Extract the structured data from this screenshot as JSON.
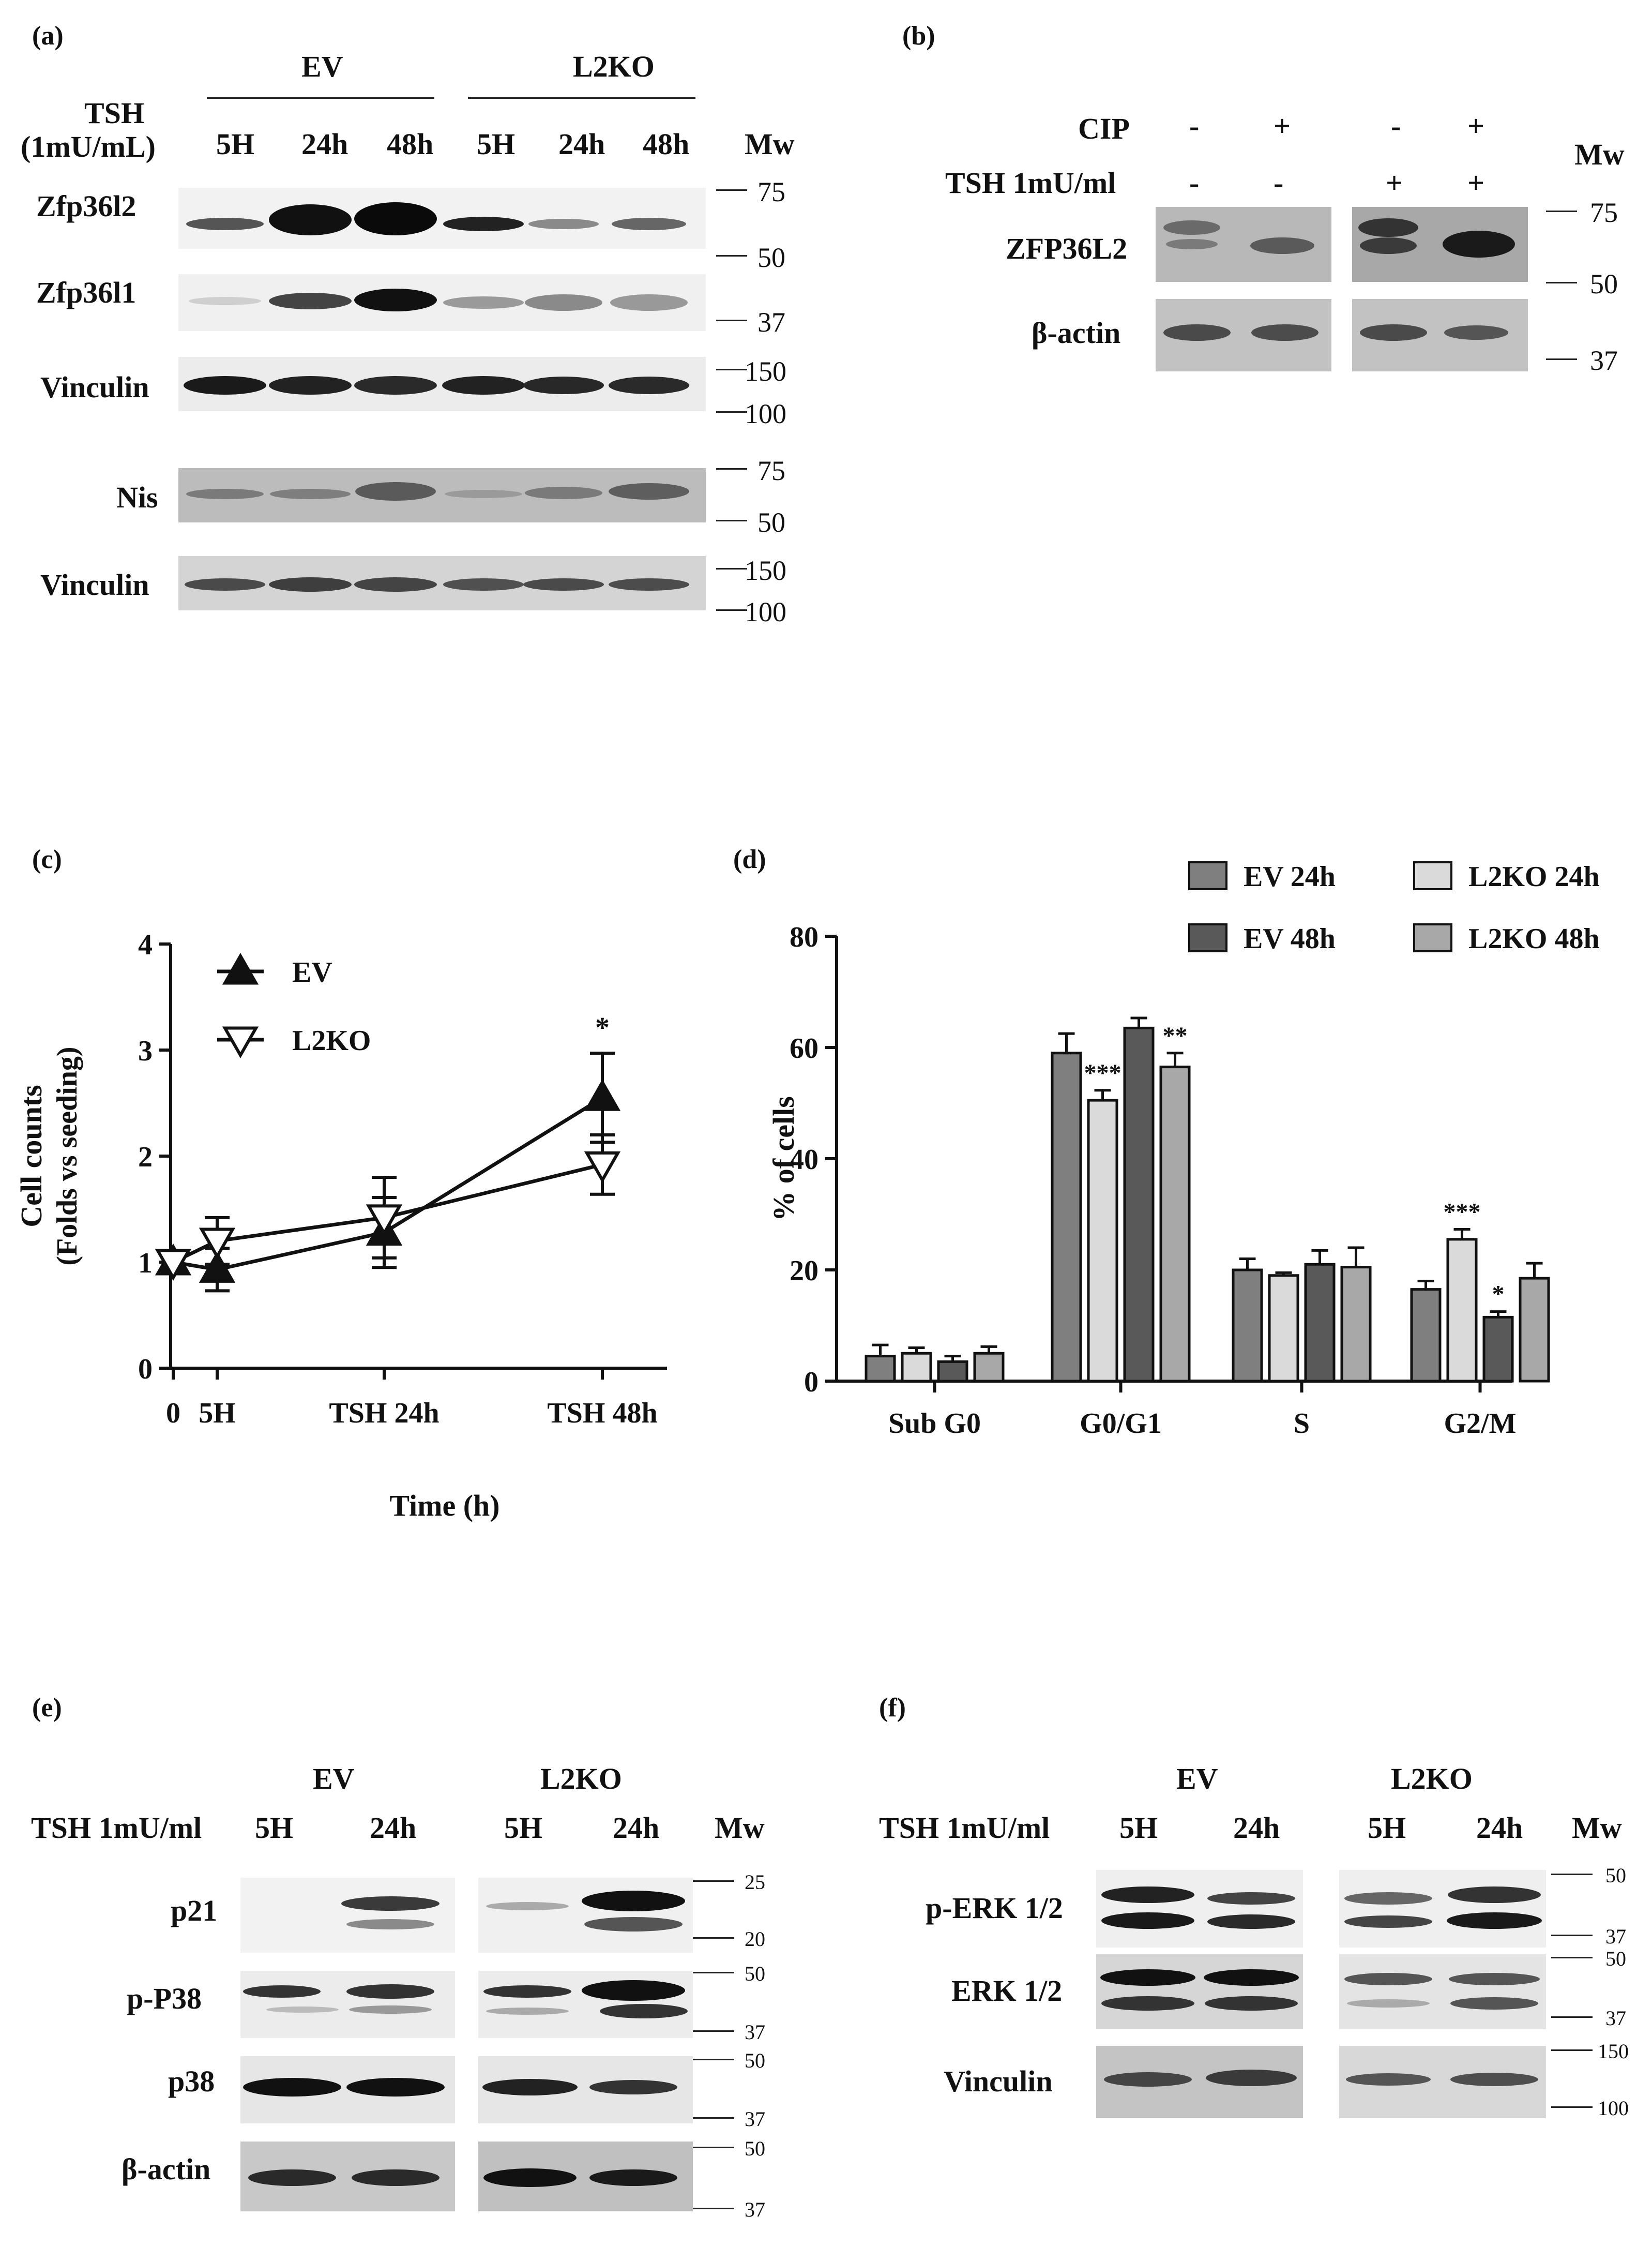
{
  "panels": {
    "a": "(a)",
    "b": "(b)",
    "c": "(c)",
    "d": "(d)",
    "e": "(e)",
    "f": "(f)"
  },
  "panel_a": {
    "group_ev": "EV",
    "group_l2ko": "L2KO",
    "treatment_line1": "TSH",
    "treatment_line2": "(1mU/mL)",
    "lanes": [
      "5H",
      "24h",
      "48h",
      "5H",
      "24h",
      "48h"
    ],
    "mw_title": "Mw",
    "rows": [
      "Zfp36l2",
      "Zfp36l1",
      "Vinculin",
      "Nis",
      "Vinculin"
    ],
    "markers": [
      "75",
      "50",
      "37",
      "150",
      "100",
      "75",
      "50",
      "150",
      "100"
    ]
  },
  "panel_b": {
    "cip_label": "CIP",
    "tsh_label": "TSH 1mU/ml",
    "cip_signs": [
      "-",
      "+",
      "-",
      "+"
    ],
    "tsh_signs": [
      "-",
      "-",
      "+",
      "+"
    ],
    "mw_title": "Mw",
    "rows": [
      "ZFP36L2",
      "β-actin"
    ],
    "markers": [
      "75",
      "50",
      "37"
    ]
  },
  "panel_e": {
    "group_ev": "EV",
    "group_l2ko": "L2KO",
    "treatment": "TSH 1mU/ml",
    "lanes": [
      "5H",
      "24h",
      "5H",
      "24h"
    ],
    "mw_title": "Mw",
    "rows": [
      "p21",
      "p-P38",
      "p38",
      "β-actin"
    ],
    "markers": [
      "25",
      "20",
      "50",
      "37",
      "50",
      "37",
      "50",
      "37"
    ]
  },
  "panel_f": {
    "group_ev": "EV",
    "group_l2ko": "L2KO",
    "treatment": "TSH 1mU/ml",
    "lanes": [
      "5H",
      "24h",
      "5H",
      "24h"
    ],
    "mw_title": "Mw",
    "rows": [
      "p-ERK 1/2",
      "ERK 1/2",
      "Vinculin"
    ],
    "markers": [
      "50",
      "37",
      "50",
      "37",
      "150",
      "100"
    ]
  },
  "chart_data": [
    {
      "type": "line",
      "panel": "c",
      "xlabel": "Time (h)",
      "ylabel": "Cell counts",
      "ylabel2": "(Folds vs seeding)",
      "x": [
        0,
        5,
        24,
        48
      ],
      "x_tick_labels": [
        "0",
        "5H",
        "TSH 24h",
        "TSH 48h"
      ],
      "ylim": [
        0,
        4
      ],
      "yticks": [
        0,
        1,
        2,
        3,
        4
      ],
      "series": [
        {
          "name": "EV",
          "marker": "filled-triangle-up",
          "values": [
            1.0,
            0.93,
            1.28,
            2.55
          ],
          "errors": [
            0.05,
            0.2,
            0.33,
            0.42
          ]
        },
        {
          "name": "L2KO",
          "marker": "open-triangle-down",
          "values": [
            1.0,
            1.2,
            1.42,
            1.92
          ],
          "errors": [
            0.05,
            0.22,
            0.38,
            0.28
          ]
        }
      ],
      "annotations": [
        {
          "x": 48,
          "text": "*"
        }
      ],
      "legend_position": "top-left"
    },
    {
      "type": "bar",
      "panel": "d",
      "ylabel": "% of cells",
      "categories": [
        "Sub G0",
        "G0/G1",
        "S",
        "G2/M"
      ],
      "ylim": [
        0,
        80
      ],
      "yticks": [
        0,
        20,
        40,
        60,
        80
      ],
      "series": [
        {
          "name": "EV 24h",
          "color": "#7f7f7f",
          "values": [
            4.5,
            59,
            20,
            16.5
          ],
          "errors": [
            2,
            3.5,
            2,
            1.5
          ]
        },
        {
          "name": "L2KO 24h",
          "color": "#dadada",
          "values": [
            5,
            50.5,
            19,
            25.5
          ],
          "errors": [
            1,
            1.8,
            0.5,
            1.8
          ]
        },
        {
          "name": "EV 48h",
          "color": "#595959",
          "values": [
            3.5,
            63.5,
            21,
            11.5
          ],
          "errors": [
            1,
            1.8,
            2.5,
            1
          ]
        },
        {
          "name": "L2KO 48h",
          "color": "#a8a8a8",
          "values": [
            5,
            56.5,
            20.5,
            18.5
          ],
          "errors": [
            1.2,
            2.5,
            3.5,
            2.7
          ]
        }
      ],
      "significance": [
        {
          "category": "G0/G1",
          "series": "L2KO 24h",
          "text": "***"
        },
        {
          "category": "G0/G1",
          "series": "L2KO 48h",
          "text": "**"
        },
        {
          "category": "G2/M",
          "series": "L2KO 24h",
          "text": "***"
        },
        {
          "category": "G2/M",
          "series": "EV 48h",
          "text": "*"
        }
      ],
      "legend_position": "top-right"
    }
  ]
}
